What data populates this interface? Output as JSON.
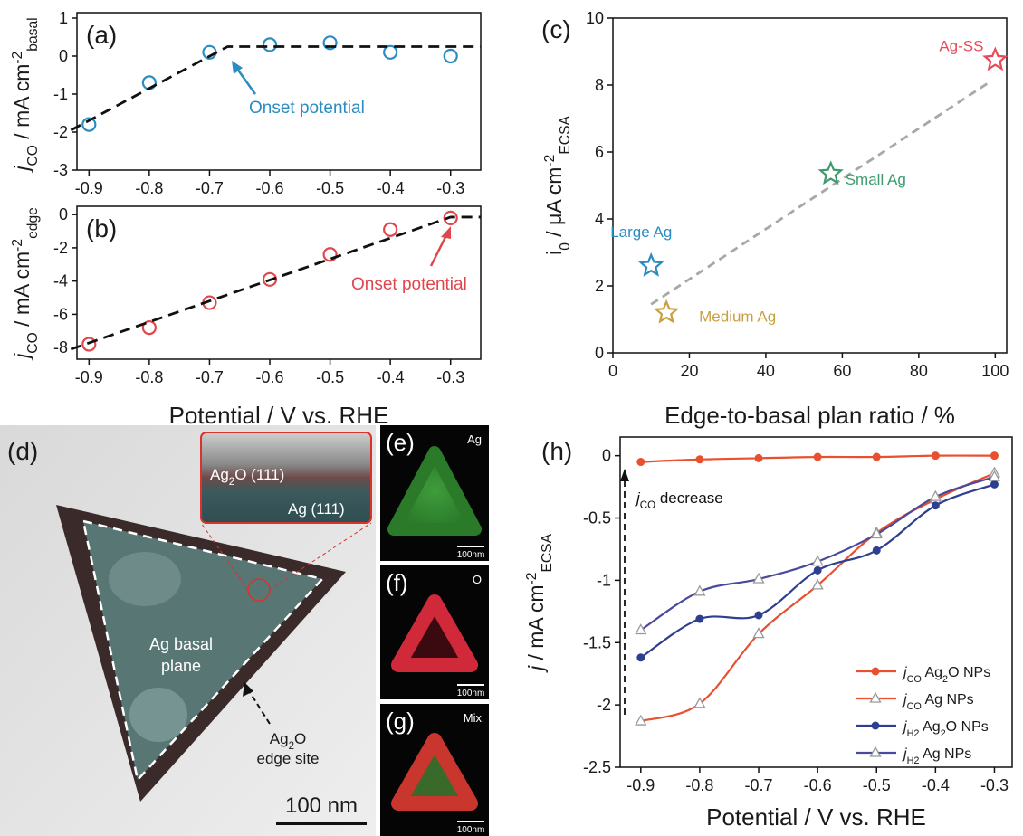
{
  "chart_data": [
    {
      "type": "scatter",
      "panel_label": "(a)",
      "ylabel": [
        "j",
        "CO",
        " / mA cm",
        "-2",
        "basal"
      ],
      "xlim": [
        -0.92,
        -0.25
      ],
      "ylim": [
        -3,
        1
      ],
      "xticks": [
        -0.9,
        -0.8,
        -0.7,
        -0.6,
        -0.5,
        -0.4,
        -0.3
      ],
      "yticks": [
        -3,
        -2,
        -1,
        0,
        1
      ],
      "series": [
        {
          "x": [
            -0.9,
            -0.8,
            -0.7,
            -0.6,
            -0.5,
            -0.4,
            -0.3
          ],
          "values": [
            -1.8,
            -0.7,
            0.1,
            0.3,
            0.35,
            0.1,
            0.0
          ],
          "color": "#2a8cc0",
          "marker": "circle",
          "line": "none"
        },
        {
          "x": [
            -0.93,
            -0.67,
            -0.25
          ],
          "values": [
            -1.95,
            0.25,
            0.25
          ],
          "color": "#111111",
          "marker": "none",
          "line": "dashed"
        }
      ],
      "annotations": [
        {
          "text": "Onset potential",
          "color": "#2a8cc0"
        }
      ]
    },
    {
      "type": "scatter",
      "panel_label": "(b)",
      "ylabel": [
        "j",
        "CO",
        " / mA cm",
        "-2",
        "edge"
      ],
      "xlabel": "Potential / V vs. RHE",
      "xlim": [
        -0.92,
        -0.25
      ],
      "ylim": [
        -8.7,
        0.5
      ],
      "xticks": [
        -0.9,
        -0.8,
        -0.7,
        -0.6,
        -0.5,
        -0.4,
        -0.3
      ],
      "yticks": [
        -8,
        -6,
        -4,
        -2,
        0
      ],
      "series": [
        {
          "x": [
            -0.9,
            -0.8,
            -0.7,
            -0.6,
            -0.5,
            -0.4,
            -0.3
          ],
          "values": [
            -7.8,
            -6.8,
            -5.3,
            -3.9,
            -2.4,
            -0.9,
            -0.2
          ],
          "color": "#e0474c",
          "marker": "circle",
          "line": "none"
        },
        {
          "x": [
            -0.93,
            -0.3,
            -0.25
          ],
          "values": [
            -8.1,
            -0.15,
            -0.15
          ],
          "color": "#111111",
          "marker": "none",
          "line": "dashed"
        }
      ],
      "annotations": [
        {
          "text": "Onset potential",
          "color": "#e0474c"
        }
      ]
    },
    {
      "type": "scatter",
      "panel_label": "(c)",
      "ylabel": [
        "i",
        "0",
        " / μA cm",
        "-2",
        "ECSA"
      ],
      "xlabel": "Edge-to-basal plan ratio / %",
      "xlim": [
        0,
        103
      ],
      "ylim": [
        0,
        10
      ],
      "xticks": [
        0,
        20,
        40,
        60,
        80,
        100
      ],
      "yticks": [
        0,
        2,
        4,
        6,
        8,
        10
      ],
      "series": [
        {
          "x": [
            10,
            98
          ],
          "values": [
            1.45,
            8.05
          ],
          "color": "#a8a8a8",
          "marker": "none",
          "line": "dashed"
        },
        {
          "x": [
            10
          ],
          "values": [
            2.6
          ],
          "color": "#2a8cc0",
          "marker": "star",
          "line": "none",
          "point_label": "Large Ag"
        },
        {
          "x": [
            14
          ],
          "values": [
            1.2
          ],
          "color": "#c9a040",
          "marker": "star",
          "line": "none",
          "point_label": "Medium Ag"
        },
        {
          "x": [
            57
          ],
          "values": [
            5.35
          ],
          "color": "#3e9a6e",
          "marker": "star",
          "line": "none",
          "point_label": "Small Ag"
        },
        {
          "x": [
            100
          ],
          "values": [
            8.75
          ],
          "color": "#e84a5a",
          "marker": "star",
          "line": "none",
          "point_label": "Ag-SS"
        }
      ]
    },
    {
      "type": "line",
      "panel_label": "(h)",
      "ylabel": [
        "j",
        " / mA cm",
        "-2",
        "ECSA"
      ],
      "xlabel": "Potential / V vs. RHE",
      "xlim": [
        -0.935,
        -0.27
      ],
      "ylim": [
        -2.5,
        0.15
      ],
      "xticks": [
        -0.9,
        -0.8,
        -0.7,
        -0.6,
        -0.5,
        -0.4,
        -0.3
      ],
      "yticks": [
        -2.5,
        -2,
        -1.5,
        -1,
        -0.5,
        0
      ],
      "legend": "lower right",
      "series": [
        {
          "name": "jCO Ag2O NPs",
          "x": [
            -0.9,
            -0.8,
            -0.7,
            -0.6,
            -0.5,
            -0.4,
            -0.3
          ],
          "values": [
            -0.05,
            -0.03,
            -0.02,
            -0.01,
            -0.01,
            0,
            0
          ],
          "color": "#e8502f",
          "marker": "circle-filled",
          "line": "smooth"
        },
        {
          "name": "jCO Ag NPs",
          "x": [
            -0.9,
            -0.8,
            -0.7,
            -0.6,
            -0.5,
            -0.4,
            -0.3
          ],
          "values": [
            -2.13,
            -1.99,
            -1.43,
            -1.04,
            -0.62,
            -0.35,
            -0.14
          ],
          "color": "#e8502f",
          "marker": "triangle",
          "line": "smooth"
        },
        {
          "name": "jH2 Ag2O NPs",
          "x": [
            -0.9,
            -0.8,
            -0.7,
            -0.6,
            -0.5,
            -0.4,
            -0.3
          ],
          "values": [
            -1.62,
            -1.31,
            -1.28,
            -0.92,
            -0.76,
            -0.4,
            -0.23
          ],
          "color": "#2e3f8f",
          "marker": "circle-filled",
          "line": "smooth"
        },
        {
          "name": "jH2 Ag NPs",
          "x": [
            -0.9,
            -0.8,
            -0.7,
            -0.6,
            -0.5,
            -0.4,
            -0.3
          ],
          "values": [
            -1.4,
            -1.09,
            -0.99,
            -0.85,
            -0.63,
            -0.33,
            -0.17
          ],
          "color": "#4a4a9a",
          "marker": "triangle",
          "line": "smooth"
        }
      ],
      "annotations": [
        {
          "text": "jCO decrease",
          "color": "#111111"
        }
      ]
    }
  ],
  "figure_panels": {
    "d": {
      "label": "(d)",
      "inset_top": "Ag2O (111)",
      "inset_bottom": "Ag (111)",
      "basal": [
        "Ag basal",
        "plane"
      ],
      "edge": [
        "Ag2O",
        "edge site"
      ],
      "scale_bar": "100 nm"
    },
    "e": {
      "label": "(e)",
      "element": "Ag",
      "scale_bar": "100nm"
    },
    "f": {
      "label": "(f)",
      "element": "O",
      "scale_bar": "100nm"
    },
    "g": {
      "label": "(g)",
      "element": "Mix",
      "scale_bar": "100nm"
    }
  }
}
